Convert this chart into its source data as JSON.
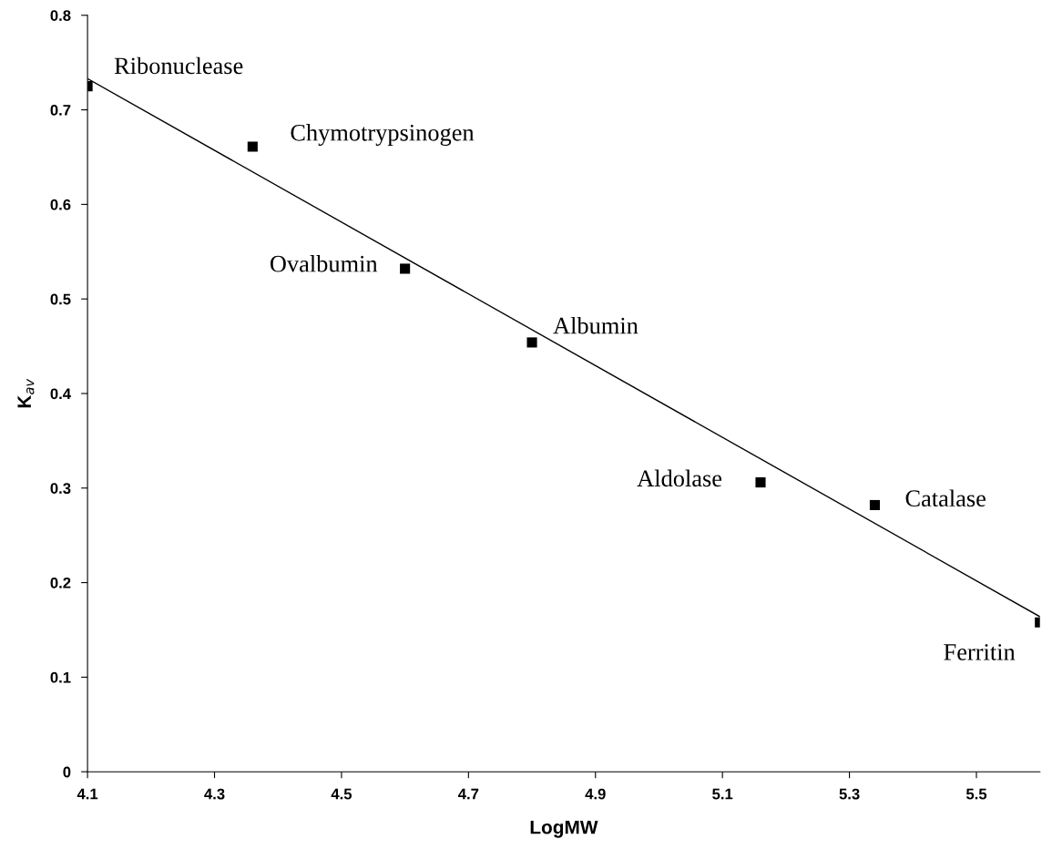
{
  "chart_data": {
    "type": "scatter",
    "xlabel": "LogMW",
    "ylabel": "K$_{av}$",
    "xlim": [
      4.1,
      5.6
    ],
    "xticks": [
      4.1,
      4.3,
      4.5,
      4.7,
      4.9,
      5.1,
      5.3,
      5.5
    ],
    "ylim": [
      0,
      0.8
    ],
    "yticks": [
      0,
      0.1,
      0.2,
      0.3,
      0.4,
      0.5,
      0.6,
      0.7,
      0.8
    ],
    "grid": false,
    "legend": false,
    "marker": "square",
    "series": [
      {
        "color": "#000000",
        "x": [
          4.1,
          4.36,
          4.6,
          4.8,
          5.16,
          5.34,
          5.6
        ],
        "values": [
          0.725,
          0.661,
          0.532,
          0.454,
          0.306,
          0.282,
          0.158
        ]
      },
      {
        "type": "line",
        "color": "#000000",
        "line_style": "solid",
        "marker": "none",
        "x": [
          4.1,
          5.6
        ],
        "values": [
          0.733,
          0.164
        ]
      }
    ],
    "annotations": [
      {
        "text": "Ribonuclease",
        "x": 4.1,
        "y": 0.725
      },
      {
        "text": "Chymotrypsinogen",
        "x": 4.36,
        "y": 0.661
      },
      {
        "text": "Ovalbumin",
        "x": 4.6,
        "y": 0.532
      },
      {
        "text": "Albumin",
        "x": 4.8,
        "y": 0.454
      },
      {
        "text": "Aldolase",
        "x": 5.16,
        "y": 0.306
      },
      {
        "text": "Catalase",
        "x": 5.34,
        "y": 0.282
      },
      {
        "text": "Ferritin",
        "x": 5.6,
        "y": 0.158
      }
    ]
  }
}
